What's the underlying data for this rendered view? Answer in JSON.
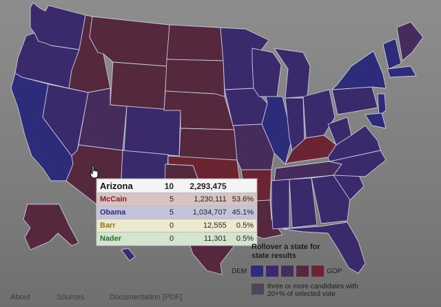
{
  "colors": {
    "background": "#7f7f7f",
    "dem_strong": "#2c2c7a",
    "dem": "#3a2a6c",
    "tossup": "#452c5c",
    "gop": "#55283e",
    "gop_strong": "#6a2432",
    "multi": "#4e4658",
    "state_border": "#c9c9d9"
  },
  "tooltip": {
    "header": {
      "name": "Arizona",
      "ev": "10",
      "votes": "2,293,475",
      "pct": ""
    },
    "rows": [
      {
        "name": "McCain",
        "ev": "5",
        "votes": "1,230,111",
        "pct": "53.6%",
        "bg": "#d8c2c2",
        "text_color": "#7a2626"
      },
      {
        "name": "Obama",
        "ev": "5",
        "votes": "1,034,707",
        "pct": "45.1%",
        "bg": "#c4c3da",
        "text_color": "#2a2f7c"
      },
      {
        "name": "Barr",
        "ev": "0",
        "votes": "12,555",
        "pct": "0.5%",
        "bg": "#ede9cf",
        "text_color": "#8a7a22"
      },
      {
        "name": "Nader",
        "ev": "0",
        "votes": "11,301",
        "pct": "0.5%",
        "bg": "#d3e4cf",
        "text_color": "#2f6a2f"
      }
    ]
  },
  "legend": {
    "title": "Rollover a state for state results",
    "dem_label": "DEM",
    "gop_label": "GOP",
    "scale": [
      "#2c2c7a",
      "#3a2a6c",
      "#452c5c",
      "#55283e",
      "#6a2432"
    ],
    "multi_color": "#4e4658",
    "multi_label": "three or more candidates with 20+% of selected vote"
  },
  "footer": {
    "about": "About",
    "sources": "Sources",
    "documentation": "Documentation [PDF]"
  },
  "map": {
    "highlighted_state": "Arizona"
  }
}
